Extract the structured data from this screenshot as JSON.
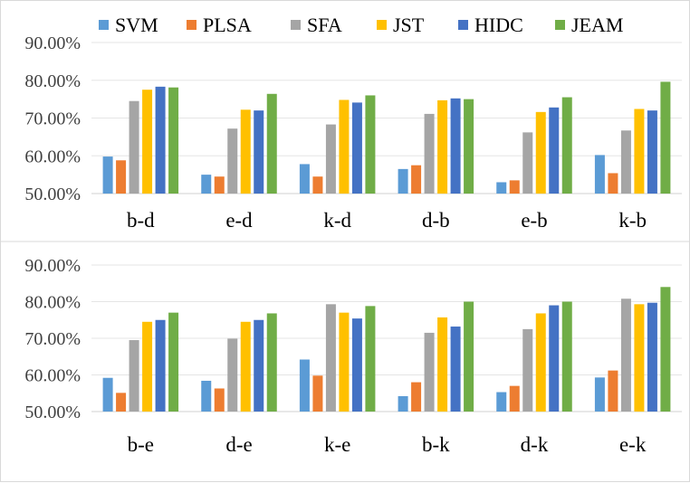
{
  "legend": {
    "placement": "top"
  },
  "colors": {
    "SVM": "#5b9bd5",
    "PLSA": "#ed7d31",
    "SFA": "#a5a5a5",
    "JST": "#ffc000",
    "HIDC": "#4472c4",
    "JEAM": "#70ad47",
    "grid": "#e5e5e5"
  },
  "chart_data": [
    {
      "type": "bar",
      "title": "",
      "xlabel": "",
      "ylabel": "",
      "ylim": [
        0.5,
        0.9
      ],
      "yticks": [
        "50.00%",
        "60.00%",
        "70.00%",
        "80.00%",
        "90.00%"
      ],
      "grid": true,
      "show_legend": true,
      "categories": [
        "b-d",
        "e-d",
        "k-d",
        "d-b",
        "e-b",
        "k-b"
      ],
      "series": [
        {
          "name": "SVM",
          "values": [
            0.598,
            0.55,
            0.578,
            0.565,
            0.53,
            0.602
          ]
        },
        {
          "name": "PLSA",
          "values": [
            0.588,
            0.545,
            0.545,
            0.575,
            0.535,
            0.554
          ]
        },
        {
          "name": "SFA",
          "values": [
            0.745,
            0.672,
            0.683,
            0.711,
            0.662,
            0.667
          ]
        },
        {
          "name": "JST",
          "values": [
            0.775,
            0.722,
            0.748,
            0.747,
            0.716,
            0.724
          ]
        },
        {
          "name": "HIDC",
          "values": [
            0.783,
            0.72,
            0.741,
            0.752,
            0.728,
            0.72
          ]
        },
        {
          "name": "JEAM",
          "values": [
            0.781,
            0.764,
            0.76,
            0.75,
            0.755,
            0.796
          ]
        }
      ]
    },
    {
      "type": "bar",
      "title": "",
      "xlabel": "",
      "ylabel": "",
      "ylim": [
        0.5,
        0.9
      ],
      "yticks": [
        "50.00%",
        "60.00%",
        "70.00%",
        "80.00%",
        "90.00%"
      ],
      "grid": true,
      "show_legend": false,
      "categories": [
        "b-e",
        "d-e",
        "k-e",
        "b-k",
        "d-k",
        "e-k"
      ],
      "series": [
        {
          "name": "SVM",
          "values": [
            0.592,
            0.584,
            0.642,
            0.542,
            0.553,
            0.593
          ]
        },
        {
          "name": "PLSA",
          "values": [
            0.551,
            0.563,
            0.598,
            0.58,
            0.57,
            0.612
          ]
        },
        {
          "name": "SFA",
          "values": [
            0.695,
            0.699,
            0.793,
            0.715,
            0.725,
            0.808
          ]
        },
        {
          "name": "JST",
          "values": [
            0.745,
            0.745,
            0.77,
            0.757,
            0.768,
            0.793
          ]
        },
        {
          "name": "HIDC",
          "values": [
            0.75,
            0.75,
            0.754,
            0.732,
            0.79,
            0.797
          ]
        },
        {
          "name": "JEAM",
          "values": [
            0.77,
            0.768,
            0.788,
            0.8,
            0.8,
            0.84
          ]
        }
      ]
    }
  ]
}
